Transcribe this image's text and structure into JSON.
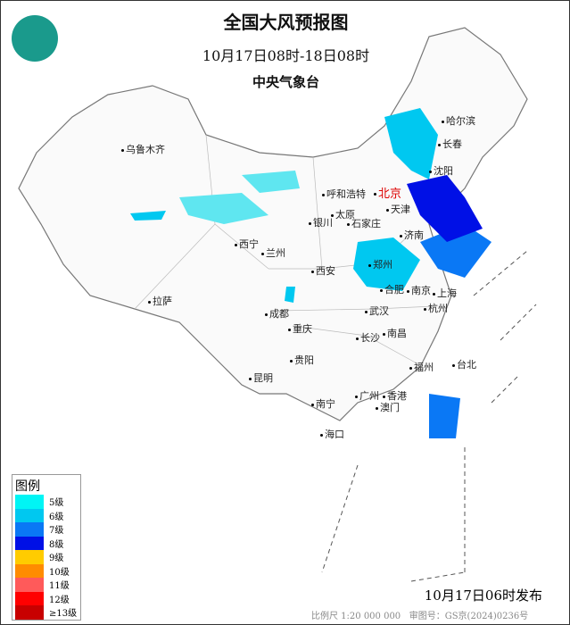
{
  "header": {
    "title": "全国大风预报图",
    "period": "10月17日08时-18日08时",
    "agency": "中央气象台"
  },
  "cities": [
    {
      "name": "乌鲁木齐"
    },
    {
      "name": "哈尔滨"
    },
    {
      "name": "长春"
    },
    {
      "name": "沈阳"
    },
    {
      "name": "呼和浩特"
    },
    {
      "name": "北京"
    },
    {
      "name": "天津"
    },
    {
      "name": "太原"
    },
    {
      "name": "石家庄"
    },
    {
      "name": "银川"
    },
    {
      "name": "西宁"
    },
    {
      "name": "兰州"
    },
    {
      "name": "济南"
    },
    {
      "name": "郑州"
    },
    {
      "name": "西安"
    },
    {
      "name": "合肥"
    },
    {
      "name": "南京"
    },
    {
      "name": "上海"
    },
    {
      "name": "拉萨"
    },
    {
      "name": "成都"
    },
    {
      "name": "武汉"
    },
    {
      "name": "杭州"
    },
    {
      "name": "重庆"
    },
    {
      "name": "长沙"
    },
    {
      "name": "南昌"
    },
    {
      "name": "贵阳"
    },
    {
      "name": "福州"
    },
    {
      "name": "台北"
    },
    {
      "name": "昆明"
    },
    {
      "name": "广州"
    },
    {
      "name": "香港"
    },
    {
      "name": "澳门"
    },
    {
      "name": "南宁"
    },
    {
      "name": "海口"
    }
  ],
  "legend": {
    "title": "图例",
    "items": [
      {
        "label": "5级",
        "color": "#00f5f5"
      },
      {
        "label": "6级",
        "color": "#00c8f0"
      },
      {
        "label": "7级",
        "color": "#0a78f5"
      },
      {
        "label": "8级",
        "color": "#0010e6"
      },
      {
        "label": "9级",
        "color": "#ffcc00"
      },
      {
        "label": "10级",
        "color": "#ff8c00"
      },
      {
        "label": "11级",
        "color": "#ff5a5a"
      },
      {
        "label": "12级",
        "color": "#ff0000"
      },
      {
        "label": "≥13级",
        "color": "#c80000"
      }
    ]
  },
  "footer": {
    "issued": "10月17日06时发布",
    "scale": "比例尺 1:20 000 000",
    "approval": "审图号：GS京(2024)0236号"
  }
}
